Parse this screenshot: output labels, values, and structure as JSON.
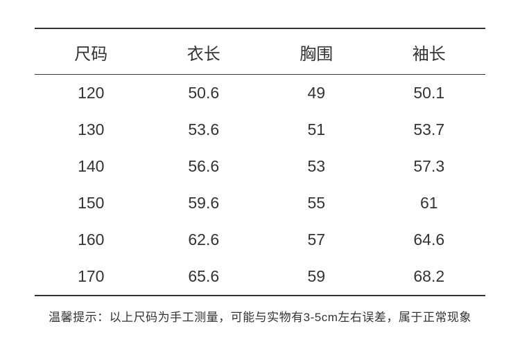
{
  "table": {
    "type": "table",
    "columns": [
      "尺码",
      "衣长",
      "胸围",
      "袖长"
    ],
    "rows": [
      [
        "120",
        "50.6",
        "49",
        "50.1"
      ],
      [
        "130",
        "53.6",
        "51",
        "53.7"
      ],
      [
        "140",
        "56.6",
        "53",
        "57.3"
      ],
      [
        "150",
        "59.6",
        "55",
        "61"
      ],
      [
        "160",
        "62.6",
        "57",
        "64.6"
      ],
      [
        "170",
        "65.6",
        "59",
        "68.2"
      ]
    ],
    "column_widths_pct": [
      25,
      25,
      25,
      25
    ],
    "header_fontsize": 24,
    "cell_fontsize": 23,
    "text_color": "#333333",
    "background_color": "#ffffff",
    "border_color": "#333333",
    "top_border_width": 2,
    "header_bottom_border_width": 1.5,
    "bottom_border_width": 2,
    "row_padding_v": 13,
    "alignment": "center"
  },
  "footnote": {
    "text": "温馨提示：以上尺码为手工测量，可能与实物有3-5cm左右误差，属于正常现象",
    "fontsize": 17,
    "color": "#333333",
    "alignment": "center"
  }
}
